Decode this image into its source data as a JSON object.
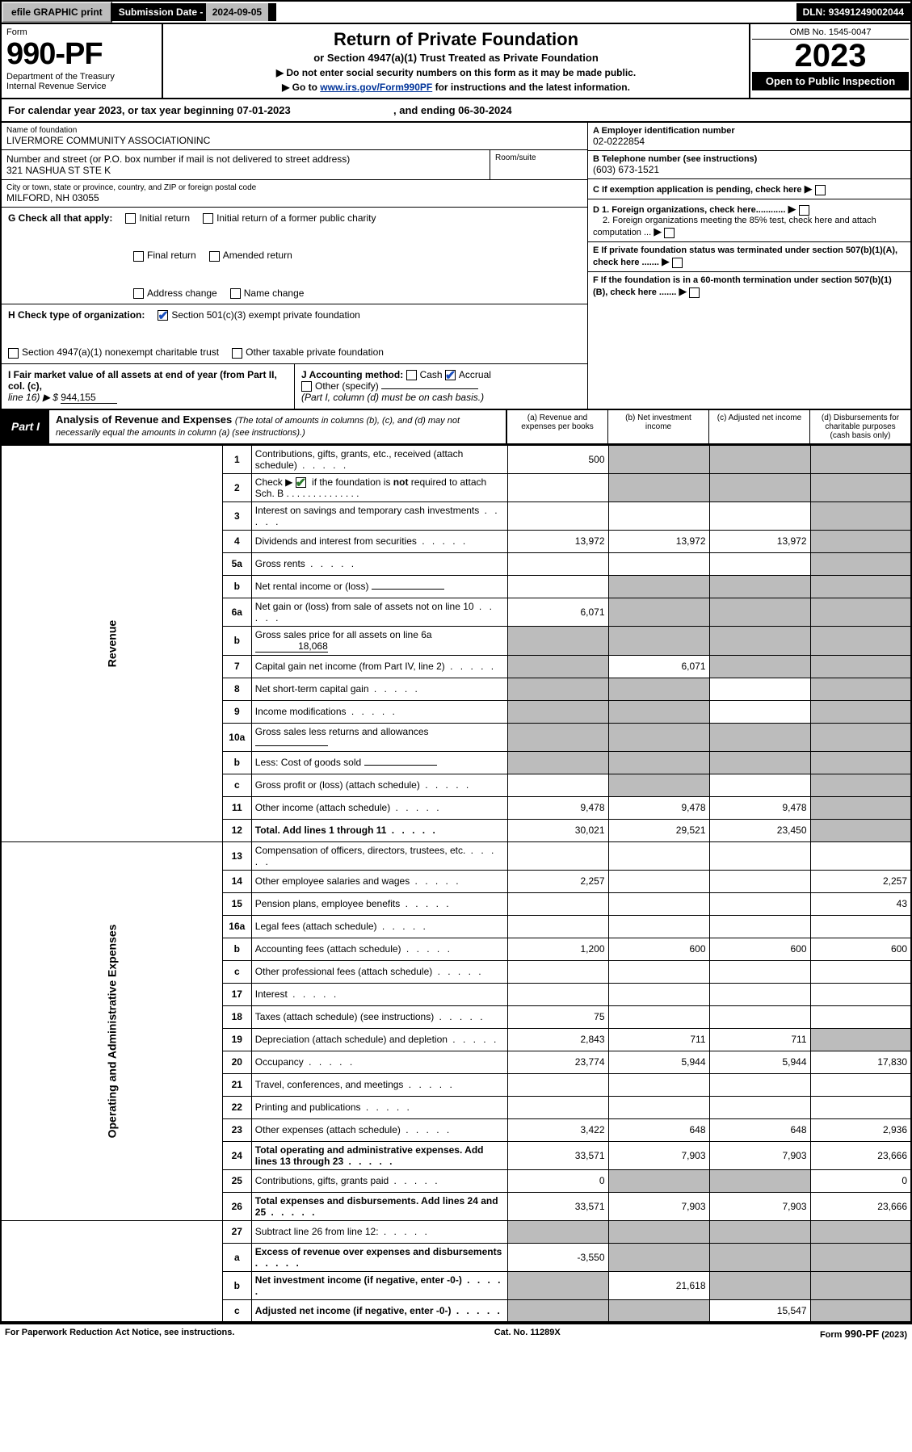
{
  "topbar": {
    "efile": "efile GRAPHIC print",
    "sub_lbl": "Submission Date - ",
    "sub_val": "2024-09-05",
    "dln_lbl": "DLN: ",
    "dln_val": "93491249002044"
  },
  "header": {
    "form_lbl": "Form",
    "form_no": "990-PF",
    "dept": "Department of the Treasury",
    "irs": "Internal Revenue Service",
    "title": "Return of Private Foundation",
    "subtitle": "or Section 4947(a)(1) Trust Treated as Private Foundation",
    "note1": "▶ Do not enter social security numbers on this form as it may be made public.",
    "note2_pre": "▶ Go to ",
    "note2_link": "www.irs.gov/Form990PF",
    "note2_post": " for instructions and the latest information.",
    "omb": "OMB No. 1545-0047",
    "year": "2023",
    "open": "Open to Public Inspection"
  },
  "calyear": {
    "pre": "For calendar year 2023, or tax year beginning ",
    "begin": "07-01-2023",
    "mid": " , and ending ",
    "end": "06-30-2024"
  },
  "info": {
    "name_lbl": "Name of foundation",
    "name": "LIVERMORE COMMUNITY ASSOCIATIONINC",
    "addr_lbl": "Number and street (or P.O. box number if mail is not delivered to street address)",
    "addr": "321 NASHUA ST STE K",
    "room_lbl": "Room/suite",
    "city_lbl": "City or town, state or province, country, and ZIP or foreign postal code",
    "city": "MILFORD, NH  03055",
    "a_lbl": "A Employer identification number",
    "a_val": "02-0222854",
    "b_lbl": "B Telephone number (see instructions)",
    "b_val": "(603) 673-1521",
    "c_lbl": "C If exemption application is pending, check here",
    "d1": "D 1. Foreign organizations, check here............",
    "d2": "2. Foreign organizations meeting the 85% test, check here and attach computation ...",
    "e": "E  If private foundation status was terminated under section 507(b)(1)(A), check here .......",
    "f": "F  If the foundation is in a 60-month termination under section 507(b)(1)(B), check here .......",
    "g_lbl": "G Check all that apply:",
    "g_opts": [
      "Initial return",
      "Final return",
      "Address change",
      "Initial return of a former public charity",
      "Amended return",
      "Name change"
    ],
    "h_lbl": "H Check type of organization:",
    "h1": "Section 501(c)(3) exempt private foundation",
    "h2": "Section 4947(a)(1) nonexempt charitable trust",
    "h3": "Other taxable private foundation",
    "i_lbl": "I Fair market value of all assets at end of year (from Part II, col. (c),",
    "i_line": "line 16) ▶ $",
    "i_val": "944,155",
    "j_lbl": "J Accounting method:",
    "j_cash": "Cash",
    "j_accr": "Accrual",
    "j_other": "Other (specify)",
    "j_note": "(Part I, column (d) must be on cash basis.)"
  },
  "part1": {
    "lbl": "Part I",
    "title": "Analysis of Revenue and Expenses",
    "note": "(The total of amounts in columns (b), (c), and (d) may not necessarily equal the amounts in column (a) (see instructions).)",
    "col_a": "(a)   Revenue and expenses per books",
    "col_b": "(b)   Net investment income",
    "col_c": "(c)   Adjusted net income",
    "col_d": "(d)  Disbursements for charitable purposes (cash basis only)"
  },
  "rows": [
    {
      "sec": "rev",
      "n": "1",
      "d": "Contributions, gifts, grants, etc., received (attach schedule)",
      "a": "500",
      "b": "g",
      "c": "g",
      "dd": "g"
    },
    {
      "sec": "rev",
      "n": "2",
      "d": "Check ▶ [✔] if the foundation is not required to attach Sch. B",
      "a": "",
      "b": "g",
      "c": "g",
      "dd": "g",
      "chk": true
    },
    {
      "sec": "rev",
      "n": "3",
      "d": "Interest on savings and temporary cash investments",
      "a": "",
      "b": "",
      "c": "",
      "dd": "g"
    },
    {
      "sec": "rev",
      "n": "4",
      "d": "Dividends and interest from securities",
      "a": "13,972",
      "b": "13,972",
      "c": "13,972",
      "dd": "g"
    },
    {
      "sec": "rev",
      "n": "5a",
      "d": "Gross rents",
      "a": "",
      "b": "",
      "c": "",
      "dd": "g"
    },
    {
      "sec": "rev",
      "n": "b",
      "d": "Net rental income or (loss)",
      "a": "",
      "b": "g",
      "c": "g",
      "dd": "g",
      "inline": true
    },
    {
      "sec": "rev",
      "n": "6a",
      "d": "Net gain or (loss) from sale of assets not on line 10",
      "a": "6,071",
      "b": "g",
      "c": "g",
      "dd": "g"
    },
    {
      "sec": "rev",
      "n": "b",
      "d": "Gross sales price for all assets on line 6a",
      "a": "g",
      "b": "g",
      "c": "g",
      "dd": "g",
      "inline_val": "18,068"
    },
    {
      "sec": "rev",
      "n": "7",
      "d": "Capital gain net income (from Part IV, line 2)",
      "a": "g",
      "b": "6,071",
      "c": "g",
      "dd": "g"
    },
    {
      "sec": "rev",
      "n": "8",
      "d": "Net short-term capital gain",
      "a": "g",
      "b": "g",
      "c": "",
      "dd": "g"
    },
    {
      "sec": "rev",
      "n": "9",
      "d": "Income modifications",
      "a": "g",
      "b": "g",
      "c": "",
      "dd": "g"
    },
    {
      "sec": "rev",
      "n": "10a",
      "d": "Gross sales less returns and allowances",
      "a": "g",
      "b": "g",
      "c": "g",
      "dd": "g",
      "inline": true
    },
    {
      "sec": "rev",
      "n": "b",
      "d": "Less: Cost of goods sold",
      "a": "g",
      "b": "g",
      "c": "g",
      "dd": "g",
      "inline": true
    },
    {
      "sec": "rev",
      "n": "c",
      "d": "Gross profit or (loss) (attach schedule)",
      "a": "",
      "b": "g",
      "c": "",
      "dd": "g"
    },
    {
      "sec": "rev",
      "n": "11",
      "d": "Other income (attach schedule)",
      "a": "9,478",
      "b": "9,478",
      "c": "9,478",
      "dd": "g"
    },
    {
      "sec": "rev",
      "n": "12",
      "d": "Total. Add lines 1 through 11",
      "a": "30,021",
      "b": "29,521",
      "c": "23,450",
      "dd": "g",
      "bold": true
    },
    {
      "sec": "exp",
      "n": "13",
      "d": "Compensation of officers, directors, trustees, etc.",
      "a": "",
      "b": "",
      "c": "",
      "dd": ""
    },
    {
      "sec": "exp",
      "n": "14",
      "d": "Other employee salaries and wages",
      "a": "2,257",
      "b": "",
      "c": "",
      "dd": "2,257"
    },
    {
      "sec": "exp",
      "n": "15",
      "d": "Pension plans, employee benefits",
      "a": "",
      "b": "",
      "c": "",
      "dd": "43"
    },
    {
      "sec": "exp",
      "n": "16a",
      "d": "Legal fees (attach schedule)",
      "a": "",
      "b": "",
      "c": "",
      "dd": ""
    },
    {
      "sec": "exp",
      "n": "b",
      "d": "Accounting fees (attach schedule)",
      "a": "1,200",
      "b": "600",
      "c": "600",
      "dd": "600"
    },
    {
      "sec": "exp",
      "n": "c",
      "d": "Other professional fees (attach schedule)",
      "a": "",
      "b": "",
      "c": "",
      "dd": ""
    },
    {
      "sec": "exp",
      "n": "17",
      "d": "Interest",
      "a": "",
      "b": "",
      "c": "",
      "dd": ""
    },
    {
      "sec": "exp",
      "n": "18",
      "d": "Taxes (attach schedule) (see instructions)",
      "a": "75",
      "b": "",
      "c": "",
      "dd": ""
    },
    {
      "sec": "exp",
      "n": "19",
      "d": "Depreciation (attach schedule) and depletion",
      "a": "2,843",
      "b": "711",
      "c": "711",
      "dd": "g"
    },
    {
      "sec": "exp",
      "n": "20",
      "d": "Occupancy",
      "a": "23,774",
      "b": "5,944",
      "c": "5,944",
      "dd": "17,830"
    },
    {
      "sec": "exp",
      "n": "21",
      "d": "Travel, conferences, and meetings",
      "a": "",
      "b": "",
      "c": "",
      "dd": ""
    },
    {
      "sec": "exp",
      "n": "22",
      "d": "Printing and publications",
      "a": "",
      "b": "",
      "c": "",
      "dd": ""
    },
    {
      "sec": "exp",
      "n": "23",
      "d": "Other expenses (attach schedule)",
      "a": "3,422",
      "b": "648",
      "c": "648",
      "dd": "2,936"
    },
    {
      "sec": "exp",
      "n": "24",
      "d": "Total operating and administrative expenses. Add lines 13 through 23",
      "a": "33,571",
      "b": "7,903",
      "c": "7,903",
      "dd": "23,666",
      "bold": true
    },
    {
      "sec": "exp",
      "n": "25",
      "d": "Contributions, gifts, grants paid",
      "a": "0",
      "b": "g",
      "c": "g",
      "dd": "0"
    },
    {
      "sec": "exp",
      "n": "26",
      "d": "Total expenses and disbursements. Add lines 24 and 25",
      "a": "33,571",
      "b": "7,903",
      "c": "7,903",
      "dd": "23,666",
      "bold": true
    },
    {
      "sec": "net",
      "n": "27",
      "d": "Subtract line 26 from line 12:",
      "a": "g",
      "b": "g",
      "c": "g",
      "dd": "g"
    },
    {
      "sec": "net",
      "n": "a",
      "d": "Excess of revenue over expenses and disbursements",
      "a": "-3,550",
      "b": "g",
      "c": "g",
      "dd": "g",
      "bold": true
    },
    {
      "sec": "net",
      "n": "b",
      "d": "Net investment income (if negative, enter -0-)",
      "a": "g",
      "b": "21,618",
      "c": "g",
      "dd": "g",
      "bold": true
    },
    {
      "sec": "net",
      "n": "c",
      "d": "Adjusted net income (if negative, enter -0-)",
      "a": "g",
      "b": "g",
      "c": "15,547",
      "dd": "g",
      "bold": true
    }
  ],
  "sections": {
    "rev": "Revenue",
    "exp": "Operating and Administrative Expenses"
  },
  "footer": {
    "left": "For Paperwork Reduction Act Notice, see instructions.",
    "mid": "Cat. No. 11289X",
    "right": "Form 990-PF (2023)"
  },
  "colors": {
    "grey": "#bcbcbc",
    "black": "#000000",
    "link": "#003399",
    "check_green": "#2a7a2a",
    "check_blue": "#1a4fbf"
  }
}
